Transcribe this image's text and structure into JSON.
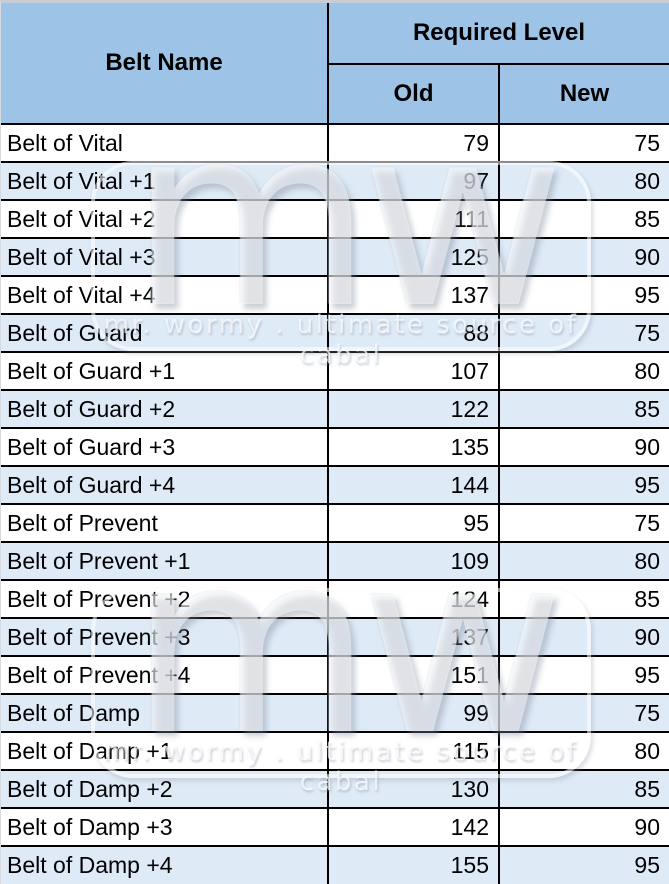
{
  "colors": {
    "header_bg": "#9DC3E6",
    "alt_row_bg": "#DEEBF7",
    "border": "#000000"
  },
  "watermark": {
    "logo": "mw",
    "caption": "mr. wormy . ultimate source of cabal"
  },
  "table": {
    "header": {
      "belt_name": "Belt Name",
      "required_level": "Required Level",
      "old": "Old",
      "new": "New"
    },
    "rows": [
      {
        "name": "Belt of Vital",
        "old": "79",
        "new": "75"
      },
      {
        "name": "Belt of Vital +1",
        "old": "97",
        "new": "80"
      },
      {
        "name": "Belt of Vital +2",
        "old": "111",
        "new": "85"
      },
      {
        "name": "Belt of Vital +3",
        "old": "125",
        "new": "90"
      },
      {
        "name": "Belt of Vital +4",
        "old": "137",
        "new": "95"
      },
      {
        "name": "Belt of Guard",
        "old": "88",
        "new": "75"
      },
      {
        "name": "Belt of Guard +1",
        "old": "107",
        "new": "80"
      },
      {
        "name": "Belt of Guard +2",
        "old": "122",
        "new": "85"
      },
      {
        "name": "Belt of Guard +3",
        "old": "135",
        "new": "90"
      },
      {
        "name": "Belt of Guard +4",
        "old": "144",
        "new": "95"
      },
      {
        "name": "Belt of Prevent",
        "old": "95",
        "new": "75"
      },
      {
        "name": "Belt of Prevent +1",
        "old": "109",
        "new": "80"
      },
      {
        "name": "Belt of Prevent +2",
        "old": "124",
        "new": "85"
      },
      {
        "name": "Belt of Prevent +3",
        "old": "137",
        "new": "90"
      },
      {
        "name": "Belt of Prevent +4",
        "old": "151",
        "new": "95"
      },
      {
        "name": "Belt of Damp",
        "old": "99",
        "new": "75"
      },
      {
        "name": "Belt of Damp +1",
        "old": "115",
        "new": "80"
      },
      {
        "name": "Belt of Damp +2",
        "old": "130",
        "new": "85"
      },
      {
        "name": "Belt of Damp +3",
        "old": "142",
        "new": "90"
      },
      {
        "name": "Belt of Damp +4",
        "old": "155",
        "new": "95"
      }
    ]
  }
}
